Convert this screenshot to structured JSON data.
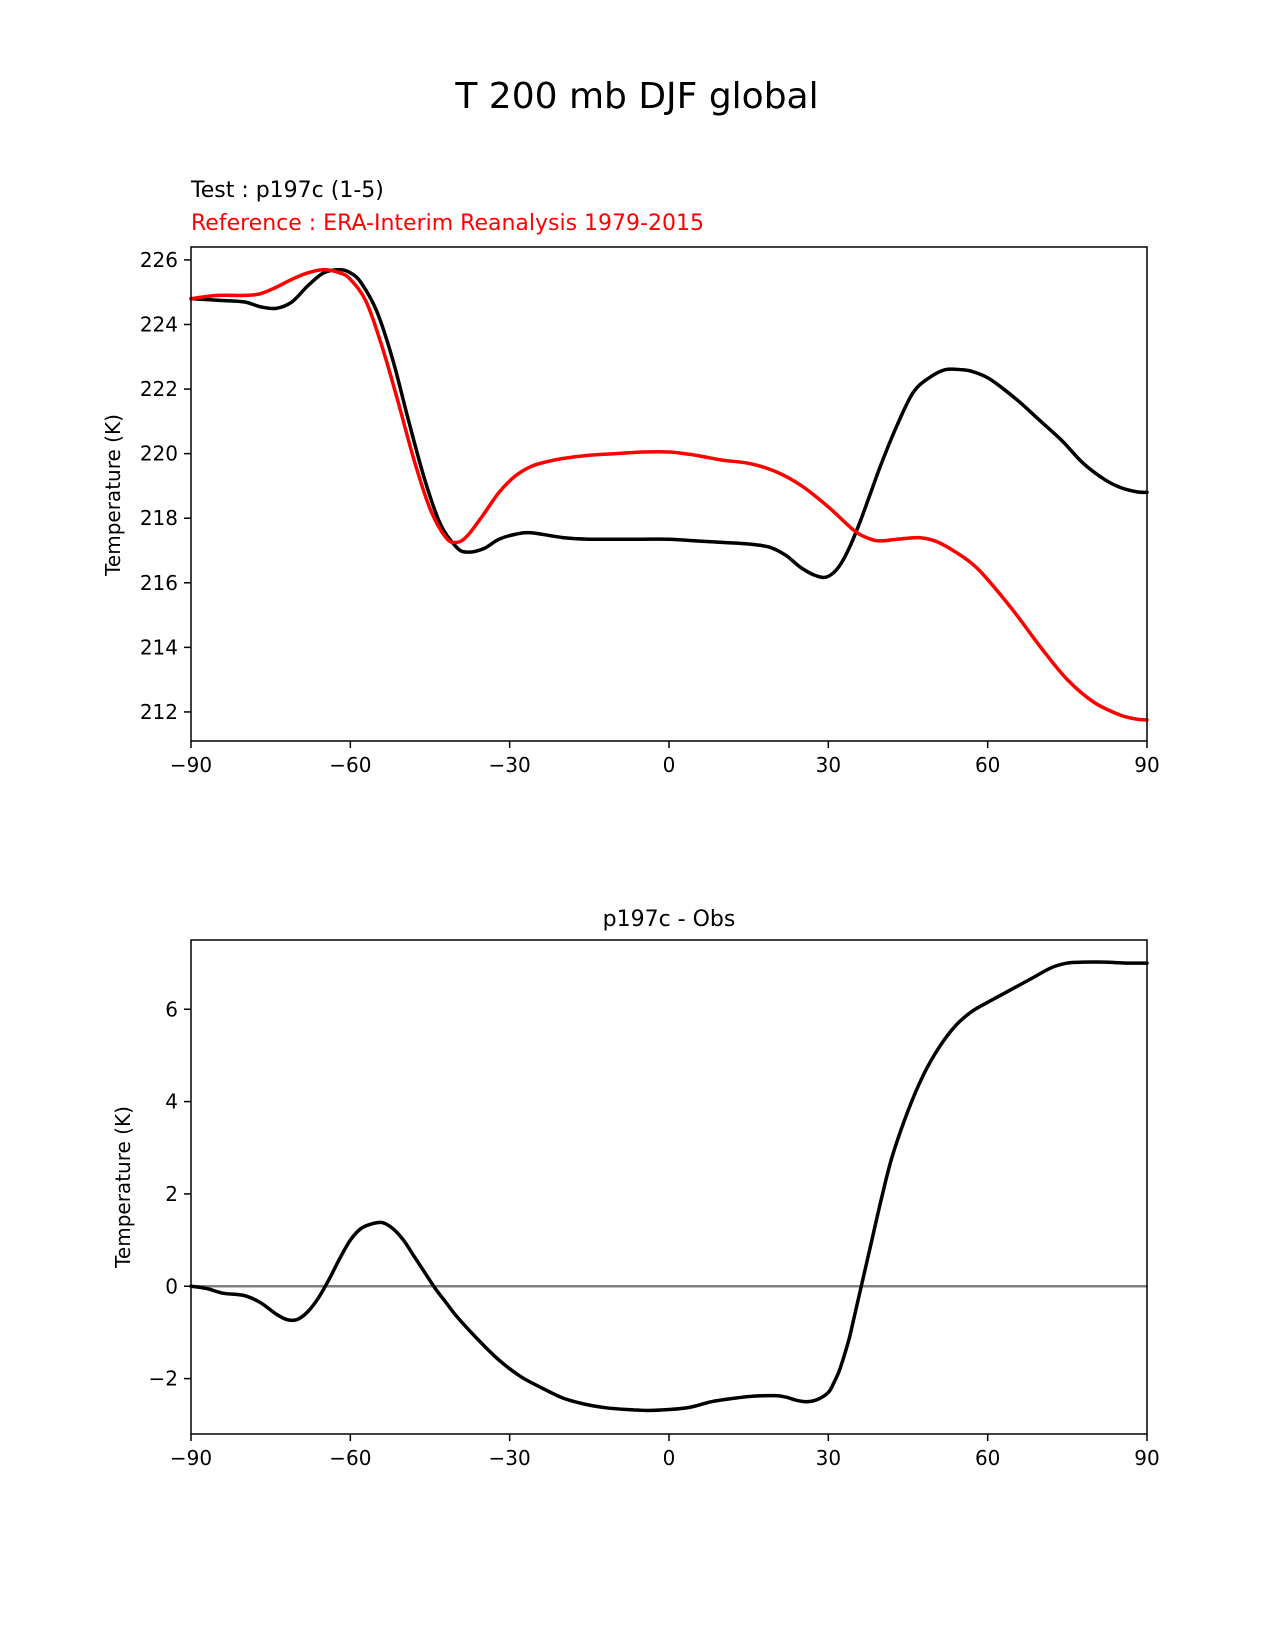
{
  "suptitle": "T 200 mb DJF global",
  "colors": {
    "test": "#000000",
    "reference": "#ff0000",
    "zero_line": "#808080"
  },
  "chart_data": [
    {
      "type": "line",
      "title": "",
      "test_label": "Test : p197c (1-5)",
      "reference_label": "Reference : ERA-Interim Reanalysis 1979-2015",
      "xlabel": "",
      "ylabel": "Temperature (K)",
      "xlim": [
        -90,
        90
      ],
      "ylim": [
        211.1,
        226.4
      ],
      "xticks": [
        -90,
        -60,
        -30,
        0,
        30,
        60,
        90
      ],
      "xtick_labels": [
        "−90",
        "−60",
        "−30",
        "0",
        "30",
        "60",
        "90"
      ],
      "yticks": [
        212,
        214,
        216,
        218,
        220,
        222,
        224,
        226
      ],
      "ytick_labels": [
        "212",
        "214",
        "216",
        "218",
        "220",
        "222",
        "224",
        "226"
      ],
      "series": [
        {
          "name": "Test : p197c (1-5)",
          "color": "#000000",
          "x": [
            -90,
            -85,
            -80,
            -77,
            -74,
            -71,
            -68,
            -65,
            -62,
            -60,
            -58,
            -55,
            -52,
            -49,
            -46,
            -43,
            -40,
            -38,
            -35,
            -32,
            -29,
            -26,
            -20,
            -15,
            -10,
            -5,
            0,
            5,
            10,
            15,
            19,
            22,
            25,
            28,
            30,
            32,
            34,
            36,
            38,
            40,
            43,
            46,
            49,
            52,
            55,
            57,
            60,
            63,
            66,
            70,
            74,
            78,
            82,
            85,
            88,
            90
          ],
          "y": [
            224.8,
            224.75,
            224.7,
            224.55,
            224.5,
            224.7,
            225.2,
            225.6,
            225.7,
            225.6,
            225.3,
            224.4,
            222.9,
            221.0,
            219.2,
            217.8,
            217.1,
            216.95,
            217.05,
            217.35,
            217.5,
            217.55,
            217.4,
            217.35,
            217.35,
            217.35,
            217.35,
            217.3,
            217.25,
            217.2,
            217.1,
            216.85,
            216.45,
            216.2,
            216.2,
            216.5,
            217.1,
            217.9,
            218.8,
            219.7,
            220.9,
            221.9,
            222.35,
            222.6,
            222.6,
            222.55,
            222.35,
            222.0,
            221.6,
            221.0,
            220.4,
            219.7,
            219.2,
            218.95,
            218.82,
            218.8
          ]
        },
        {
          "name": "Reference : ERA-Interim Reanalysis 1979-2015",
          "color": "#ff0000",
          "x": [
            -90,
            -85,
            -80,
            -77,
            -74,
            -71,
            -68,
            -65,
            -62,
            -60,
            -57,
            -54,
            -51,
            -48,
            -45,
            -42,
            -40,
            -38,
            -35,
            -32,
            -29,
            -26,
            -23,
            -20,
            -15,
            -10,
            -5,
            0,
            5,
            10,
            15,
            20,
            25,
            30,
            35,
            38,
            40,
            43,
            47,
            50,
            53,
            57,
            60,
            65,
            70,
            75,
            80,
            85,
            88,
            90
          ],
          "y": [
            224.8,
            224.9,
            224.9,
            224.95,
            225.15,
            225.4,
            225.6,
            225.7,
            225.6,
            225.4,
            224.7,
            223.3,
            221.6,
            219.8,
            218.3,
            217.4,
            217.25,
            217.45,
            218.1,
            218.8,
            219.3,
            219.6,
            219.75,
            219.85,
            219.95,
            220.0,
            220.05,
            220.05,
            219.95,
            219.8,
            219.7,
            219.45,
            219.0,
            218.35,
            217.6,
            217.35,
            217.3,
            217.35,
            217.4,
            217.3,
            217.05,
            216.6,
            216.1,
            215.1,
            214.0,
            213.0,
            212.3,
            211.9,
            211.78,
            211.75
          ]
        }
      ]
    },
    {
      "type": "line",
      "title": "p197c - Obs",
      "xlabel": "",
      "ylabel": "Temperature (K)",
      "xlim": [
        -90,
        90
      ],
      "ylim": [
        -3.2,
        7.5
      ],
      "xticks": [
        -90,
        -60,
        -30,
        0,
        30,
        60,
        90
      ],
      "xtick_labels": [
        "−90",
        "−60",
        "−30",
        "0",
        "30",
        "60",
        "90"
      ],
      "yticks": [
        -2,
        0,
        2,
        4,
        6
      ],
      "ytick_labels": [
        "−2",
        "0",
        "2",
        "4",
        "6"
      ],
      "zero_line": 0,
      "series": [
        {
          "name": "p197c - Obs",
          "color": "#000000",
          "x": [
            -90,
            -87,
            -84,
            -80,
            -77,
            -74,
            -72,
            -70,
            -68,
            -66,
            -64,
            -62,
            -60,
            -58,
            -56,
            -54,
            -52,
            -50,
            -48,
            -46,
            -44,
            -42,
            -40,
            -36,
            -32,
            -28,
            -24,
            -20,
            -16,
            -12,
            -8,
            -4,
            0,
            4,
            8,
            12,
            16,
            20,
            22,
            24,
            26,
            28,
            30,
            31,
            32,
            33,
            34,
            35,
            36,
            38,
            40,
            42,
            45,
            48,
            51,
            54,
            57,
            60,
            64,
            68,
            72,
            75,
            78,
            82,
            86,
            90
          ],
          "y": [
            0.0,
            -0.05,
            -0.15,
            -0.2,
            -0.35,
            -0.6,
            -0.72,
            -0.72,
            -0.55,
            -0.25,
            0.15,
            0.6,
            1.0,
            1.25,
            1.35,
            1.38,
            1.25,
            1.0,
            0.65,
            0.3,
            -0.05,
            -0.35,
            -0.65,
            -1.15,
            -1.6,
            -1.95,
            -2.2,
            -2.42,
            -2.55,
            -2.63,
            -2.67,
            -2.69,
            -2.67,
            -2.62,
            -2.5,
            -2.43,
            -2.38,
            -2.37,
            -2.4,
            -2.47,
            -2.5,
            -2.45,
            -2.3,
            -2.1,
            -1.85,
            -1.5,
            -1.1,
            -0.6,
            -0.1,
            0.9,
            1.9,
            2.8,
            3.8,
            4.6,
            5.2,
            5.65,
            5.95,
            6.15,
            6.4,
            6.65,
            6.9,
            7.0,
            7.02,
            7.02,
            7.0,
            7.0
          ]
        }
      ]
    }
  ]
}
